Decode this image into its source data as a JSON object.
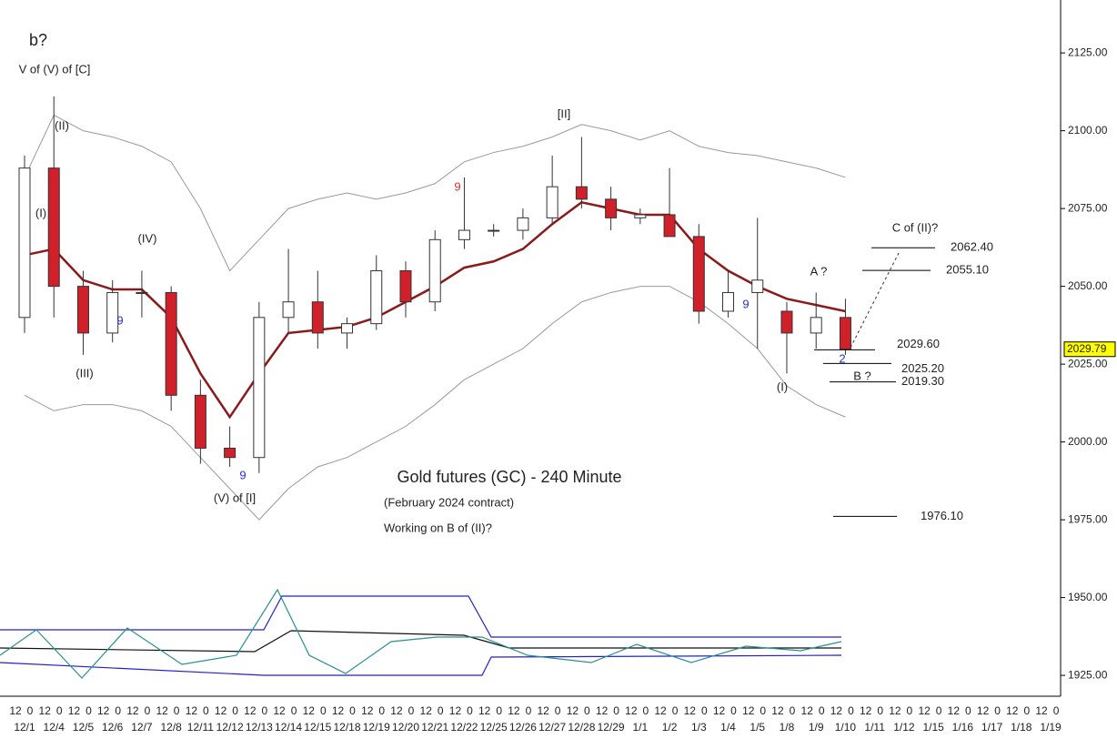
{
  "chart_data": {
    "type": "candlestick",
    "title": "Gold futures (GC) - 240 Minute",
    "subtitle": "(February 2024 contract)",
    "note": "Working on B of (II)?",
    "categories": [
      "12/1",
      "12/4",
      "12/5",
      "12/6",
      "12/7",
      "12/8",
      "12/11",
      "12/12",
      "12/13",
      "12/14",
      "12/15",
      "12/18",
      "12/19",
      "12/20",
      "12/21",
      "12/22",
      "12/25",
      "12/26",
      "12/27",
      "12/28",
      "12/29",
      "1/1",
      "1/2",
      "1/3",
      "1/4",
      "1/5",
      "1/8",
      "1/9",
      "1/10",
      "1/11",
      "1/12",
      "1/15",
      "1/16",
      "1/17",
      "1/18",
      "1/19"
    ],
    "hour_labels": [
      "12",
      "0"
    ],
    "open": [
      2040,
      2088,
      2050,
      2035,
      2048,
      2048,
      2015,
      1998,
      1995,
      2040,
      2045,
      2035,
      2038,
      2055,
      2045,
      2065,
      2068,
      2068,
      2072,
      2082,
      2078,
      2072,
      2073,
      2066,
      2042,
      2048,
      2042,
      2035,
      2040,
      null,
      null,
      null,
      null,
      null,
      null,
      null
    ],
    "high": [
      2092,
      2111,
      2055,
      2052,
      2055,
      2050,
      2020,
      2005,
      2045,
      2062,
      2055,
      2040,
      2060,
      2058,
      2068,
      2085,
      2070,
      2075,
      2092,
      2098,
      2082,
      2075,
      2088,
      2070,
      2055,
      2072,
      2045,
      2048,
      2046,
      null,
      null,
      null,
      null,
      null,
      null,
      null
    ],
    "low": [
      2035,
      2040,
      2028,
      2032,
      2040,
      2010,
      1993,
      1992,
      1990,
      2035,
      2030,
      2030,
      2036,
      2040,
      2042,
      2062,
      2066,
      2065,
      2070,
      2075,
      2068,
      2070,
      2068,
      2038,
      2040,
      2030,
      2022,
      2030,
      2028,
      null,
      null,
      null,
      null,
      null,
      null,
      null
    ],
    "close": [
      2088,
      2050,
      2035,
      2048,
      2048,
      2015,
      1998,
      1995,
      2040,
      2045,
      2035,
      2038,
      2055,
      2045,
      2065,
      2068,
      2068,
      2072,
      2082,
      2078,
      2072,
      2073,
      2066,
      2042,
      2048,
      2052,
      2035,
      2040,
      2029.79,
      null,
      null,
      null,
      null,
      null,
      null,
      null
    ],
    "series": [
      {
        "color": "#8b1a1a",
        "values": [
          2060,
          2062,
          2052,
          2049,
          2049,
          2040,
          2022,
          2008,
          2022,
          2035,
          2036,
          2037,
          2040,
          2045,
          2050,
          2056,
          2058,
          2062,
          2070,
          2077,
          2075,
          2073,
          2073,
          2062,
          2055,
          2050,
          2046,
          2044,
          2042,
          null,
          null,
          null,
          null,
          null,
          null,
          null
        ]
      },
      {
        "color": "#999999",
        "values": [
          2085,
          2105,
          2100,
          2098,
          2095,
          2090,
          2075,
          2055,
          2065,
          2075,
          2078,
          2080,
          2078,
          2080,
          2083,
          2090,
          2093,
          2095,
          2098,
          2102,
          2100,
          2097,
          2100,
          2095,
          2093,
          2092,
          2090,
          2088,
          2085,
          null,
          null,
          null,
          null,
          null,
          null,
          null
        ]
      },
      {
        "color": "#999999",
        "values": [
          2015,
          2010,
          2012,
          2012,
          2010,
          2005,
          1995,
          1985,
          1975,
          1985,
          1992,
          1995,
          2000,
          2005,
          2012,
          2020,
          2025,
          2030,
          2038,
          2045,
          2048,
          2050,
          2050,
          2045,
          2038,
          2030,
          2018,
          2012,
          2008,
          null,
          null,
          null,
          null,
          null,
          null,
          null
        ]
      }
    ],
    "up_color": "#ffffff",
    "down_color": "#d0202a",
    "ylim": [
      1918.3,
      2142
    ],
    "yticks": [
      {
        "value": 1925,
        "label": "1925.00"
      },
      {
        "value": 1950,
        "label": "1950.00"
      },
      {
        "value": 1975,
        "label": "1975.00"
      },
      {
        "value": 2000,
        "label": "2000.00"
      },
      {
        "value": 2025,
        "label": "2025.00"
      },
      {
        "value": 2050,
        "label": "2050.00"
      },
      {
        "value": 2075,
        "label": "2075.00"
      },
      {
        "value": 2100,
        "label": "2100.00"
      },
      {
        "value": 2125,
        "label": "2125.00"
      }
    ],
    "last_price": 2029.79,
    "levels": {
      "values": [
        2062.4,
        2055.1,
        2029.6,
        2025.2,
        2019.3,
        1976.1
      ],
      "value_labels": [
        "2062.40",
        "2055.10",
        "2029.60",
        "2025.20",
        "2019.30",
        "1976.10"
      ]
    },
    "annotations": [
      "b?",
      "V of (V) of [C]",
      "(II)",
      "(I)",
      "(IV)",
      "(III)",
      "9",
      "(V) of [I]",
      "9",
      "9",
      "[II]",
      "9",
      "A ?",
      "C of (II)?",
      "2",
      "B ?",
      "(I)"
    ]
  }
}
